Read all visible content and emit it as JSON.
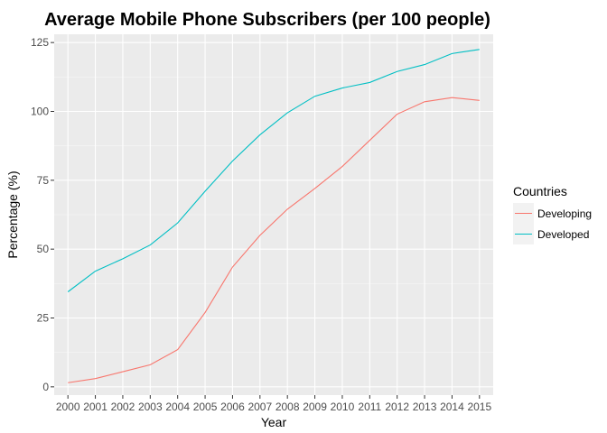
{
  "chart_data": {
    "type": "line",
    "title": "Average Mobile Phone Subscribers (per 100 people)",
    "xlabel": "Year",
    "ylabel": "Percentage (%)",
    "x": [
      2000,
      2001,
      2002,
      2003,
      2004,
      2005,
      2006,
      2007,
      2008,
      2009,
      2010,
      2011,
      2012,
      2013,
      2014,
      2015
    ],
    "x_tick_labels": [
      "2000",
      "2001",
      "2002",
      "2003",
      "2004",
      "2005",
      "2006",
      "2007",
      "2008",
      "2009",
      "2010",
      "2011",
      "2012",
      "2013",
      "2014",
      "2015"
    ],
    "y_ticks": [
      0,
      25,
      50,
      75,
      100,
      125
    ],
    "y_tick_labels": [
      "0",
      "25",
      "50",
      "75",
      "100",
      "125"
    ],
    "xlim": [
      1999.5,
      2015.5
    ],
    "ylim": [
      -3,
      128
    ],
    "grid": true,
    "background": "#ebebeb",
    "legend": {
      "title": "Countries",
      "placement": "right"
    },
    "series": [
      {
        "name": "Developing",
        "color": "#f8766d",
        "values": [
          1.5,
          3.0,
          5.5,
          8.0,
          13.5,
          27.0,
          43.5,
          55.0,
          64.5,
          72.0,
          80.0,
          89.5,
          99.0,
          103.5,
          105.0,
          104.0
        ]
      },
      {
        "name": "Developed",
        "color": "#00bfc4",
        "values": [
          34.5,
          42.0,
          46.5,
          51.5,
          59.5,
          71.0,
          82.0,
          91.5,
          99.5,
          105.5,
          108.5,
          110.5,
          114.5,
          117.0,
          121.0,
          122.5
        ]
      }
    ]
  }
}
